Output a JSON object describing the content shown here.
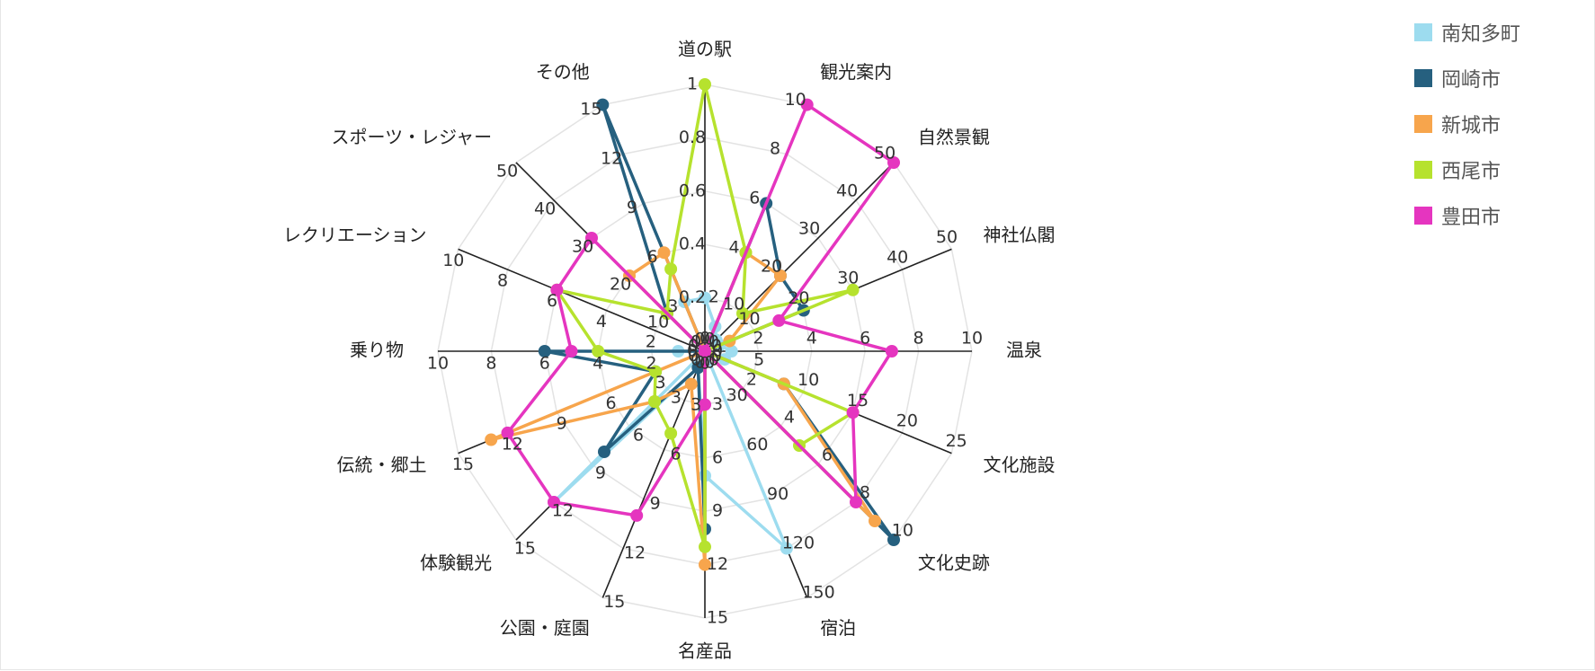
{
  "chart_data": {
    "type": "radar",
    "title": "",
    "axes": [
      {
        "name": "道の駅",
        "max": 1,
        "ticks": [
          "0",
          "0.2",
          "0.4",
          "0.6",
          "0.8",
          "1"
        ]
      },
      {
        "name": "観光案内",
        "max": 10,
        "ticks": [
          "0",
          "2",
          "4",
          "6",
          "8",
          "10"
        ]
      },
      {
        "name": "自然景観",
        "max": 50,
        "ticks": [
          "0",
          "10",
          "20",
          "30",
          "40",
          "50"
        ]
      },
      {
        "name": "神社仏閣",
        "max": 50,
        "ticks": [
          "0",
          "10",
          "20",
          "30",
          "40",
          "50"
        ]
      },
      {
        "name": "温泉",
        "max": 10,
        "ticks": [
          "0",
          "2",
          "4",
          "6",
          "8",
          "10"
        ]
      },
      {
        "name": "文化施設",
        "max": 25,
        "ticks": [
          "0",
          "5",
          "10",
          "15",
          "20",
          "25"
        ]
      },
      {
        "name": "文化史跡",
        "max": 10,
        "ticks": [
          "0",
          "2",
          "4",
          "6",
          "8",
          "10"
        ]
      },
      {
        "name": "宿泊",
        "max": 150,
        "ticks": [
          "0",
          "30",
          "60",
          "90",
          "120",
          "150"
        ]
      },
      {
        "name": "名産品",
        "max": 15,
        "ticks": [
          "0",
          "3",
          "6",
          "9",
          "12",
          "15"
        ]
      },
      {
        "name": "公園・庭園",
        "max": 15,
        "ticks": [
          "0",
          "3",
          "6",
          "9",
          "12",
          "15"
        ]
      },
      {
        "name": "体験観光",
        "max": 15,
        "ticks": [
          "0",
          "3",
          "6",
          "9",
          "12",
          "15"
        ]
      },
      {
        "name": "伝統・郷土",
        "max": 15,
        "ticks": [
          "0",
          "3",
          "6",
          "9",
          "12",
          "15"
        ]
      },
      {
        "name": "乗り物",
        "max": 10,
        "ticks": [
          "0",
          "2",
          "4",
          "6",
          "8",
          "10"
        ]
      },
      {
        "name": "レクリエーション",
        "max": 10,
        "ticks": [
          "0",
          "2",
          "4",
          "6",
          "8",
          "10"
        ]
      },
      {
        "name": "スポーツ・レジャー",
        "max": 50,
        "ticks": [
          "0",
          "10",
          "20",
          "30",
          "40",
          "50"
        ]
      },
      {
        "name": "その他",
        "max": 15,
        "ticks": [
          "0",
          "3",
          "6",
          "9",
          "12",
          "15"
        ]
      }
    ],
    "series": [
      {
        "name": "南知多町",
        "color": "#9ddcef",
        "values": [
          0.2,
          1,
          3,
          3,
          1,
          2,
          0,
          120,
          7,
          1,
          12,
          0,
          1,
          0,
          0,
          3
        ]
      },
      {
        "name": "岡崎市",
        "color": "#26607f",
        "values": [
          0,
          6,
          20,
          20,
          0,
          8,
          10,
          0,
          10,
          1,
          8,
          3,
          6,
          0,
          10,
          15
        ]
      },
      {
        "name": "新城市",
        "color": "#f7a54c",
        "values": [
          0,
          4,
          20,
          5,
          0,
          8,
          9,
          0,
          12,
          2,
          4,
          13,
          0,
          0,
          20,
          6
        ]
      },
      {
        "name": "西尾市",
        "color": "#b6e22e",
        "values": [
          1,
          4,
          10,
          30,
          0,
          15,
          5,
          0,
          11,
          5,
          4,
          3,
          4,
          6,
          10,
          5
        ]
      },
      {
        "name": "豊田市",
        "color": "#e535bf",
        "values": [
          0,
          10,
          50,
          15,
          7,
          15,
          8,
          0,
          3,
          10,
          12,
          12,
          5,
          6,
          30,
          0
        ]
      }
    ],
    "grid": true,
    "legend_position": "top-right"
  }
}
